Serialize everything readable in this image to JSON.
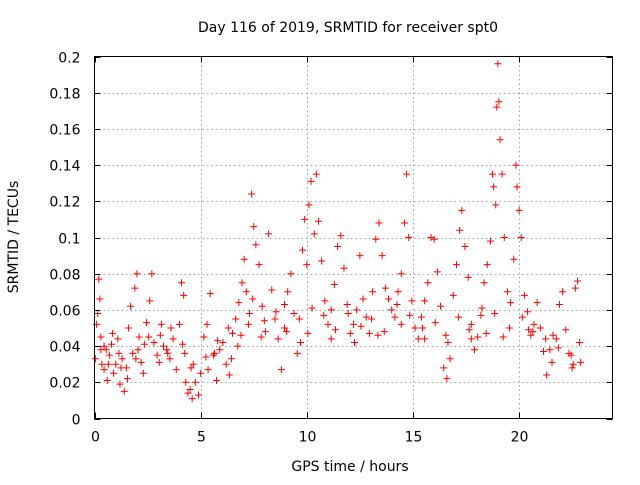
{
  "chart_data": {
    "type": "scatter",
    "title": "Day 116 of 2019, SRMTID for receiver spt0",
    "xlabel": "GPS time / hours",
    "ylabel": "SRMTID / TECUs",
    "xlim": [
      0,
      24.4
    ],
    "ylim": [
      0,
      0.2
    ],
    "x_ticks": [
      "0",
      "5",
      "10",
      "15",
      "20"
    ],
    "x_tick_values": [
      0,
      5,
      10,
      15,
      20
    ],
    "y_ticks": [
      "0",
      "0.02",
      "0.04",
      "0.06",
      "0.08",
      "0.1",
      "0.12",
      "0.14",
      "0.16",
      "0.18",
      "0.2"
    ],
    "y_tick_values": [
      0,
      0.02,
      0.04,
      0.06,
      0.08,
      0.1,
      0.12,
      0.14,
      0.16,
      0.18,
      0.2
    ],
    "grid": true,
    "marker": "+",
    "color": "#ff0000",
    "series": [
      {
        "name": "SRMTID",
        "points": [
          [
            0.05,
            0.033
          ],
          [
            0.1,
            0.052
          ],
          [
            0.15,
            0.058
          ],
          [
            0.2,
            0.077
          ],
          [
            0.25,
            0.066
          ],
          [
            0.3,
            0.045
          ],
          [
            0.35,
            0.03
          ],
          [
            0.45,
            0.027
          ],
          [
            0.55,
            0.038
          ],
          [
            0.6,
            0.021
          ],
          [
            0.7,
            0.035
          ],
          [
            0.8,
            0.041
          ],
          [
            0.9,
            0.025
          ],
          [
            1.0,
            0.03
          ],
          [
            1.1,
            0.044
          ],
          [
            1.2,
            0.019
          ],
          [
            1.3,
            0.033
          ],
          [
            1.4,
            0.015
          ],
          [
            1.5,
            0.028
          ],
          [
            1.6,
            0.05
          ],
          [
            1.7,
            0.062
          ],
          [
            1.8,
            0.036
          ],
          [
            1.9,
            0.072
          ],
          [
            2.0,
            0.08
          ],
          [
            2.1,
            0.045
          ],
          [
            2.2,
            0.031
          ],
          [
            2.3,
            0.025
          ],
          [
            2.45,
            0.053
          ],
          [
            2.6,
            0.065
          ],
          [
            2.7,
            0.08
          ],
          [
            2.8,
            0.042
          ],
          [
            2.95,
            0.035
          ],
          [
            3.1,
            0.046
          ],
          [
            3.25,
            0.04
          ],
          [
            3.4,
            0.038
          ],
          [
            3.55,
            0.033
          ],
          [
            3.7,
            0.044
          ],
          [
            3.85,
            0.027
          ],
          [
            4.0,
            0.052
          ],
          [
            4.1,
            0.075
          ],
          [
            4.2,
            0.068
          ],
          [
            4.3,
            0.02
          ],
          [
            4.4,
            0.014
          ],
          [
            4.5,
            0.016
          ],
          [
            4.6,
            0.011
          ],
          [
            4.75,
            0.02
          ],
          [
            4.9,
            0.013
          ],
          [
            5.0,
            0.025
          ],
          [
            5.15,
            0.045
          ],
          [
            5.3,
            0.052
          ],
          [
            5.45,
            0.069
          ],
          [
            5.6,
            0.035
          ],
          [
            5.75,
            0.021
          ],
          [
            5.9,
            0.038
          ],
          [
            6.05,
            0.042
          ],
          [
            6.2,
            0.03
          ],
          [
            6.35,
            0.024
          ],
          [
            6.5,
            0.047
          ],
          [
            6.65,
            0.055
          ],
          [
            6.8,
            0.064
          ],
          [
            6.95,
            0.075
          ],
          [
            7.05,
            0.088
          ],
          [
            7.15,
            0.07
          ],
          [
            7.3,
            0.058
          ],
          [
            7.4,
            0.124
          ],
          [
            7.5,
            0.106
          ],
          [
            7.6,
            0.096
          ],
          [
            7.75,
            0.085
          ],
          [
            7.9,
            0.062
          ],
          [
            8.05,
            0.048
          ],
          [
            8.2,
            0.102
          ],
          [
            8.35,
            0.071
          ],
          [
            8.5,
            0.055
          ],
          [
            8.65,
            0.044
          ],
          [
            8.8,
            0.027
          ],
          [
            8.95,
            0.063
          ],
          [
            9.1,
            0.07
          ],
          [
            9.25,
            0.08
          ],
          [
            9.4,
            0.058
          ],
          [
            9.55,
            0.036
          ],
          [
            9.7,
            0.042
          ],
          [
            9.8,
            0.093
          ],
          [
            9.9,
            0.11
          ],
          [
            10.0,
            0.085
          ],
          [
            10.1,
            0.118
          ],
          [
            10.2,
            0.131
          ],
          [
            10.35,
            0.102
          ],
          [
            10.45,
            0.135
          ],
          [
            10.55,
            0.109
          ],
          [
            10.7,
            0.087
          ],
          [
            10.85,
            0.065
          ],
          [
            11.0,
            0.052
          ],
          [
            11.15,
            0.06
          ],
          [
            11.3,
            0.074
          ],
          [
            11.45,
            0.095
          ],
          [
            11.6,
            0.101
          ],
          [
            11.75,
            0.083
          ],
          [
            11.9,
            0.063
          ],
          [
            12.05,
            0.047
          ],
          [
            12.2,
            0.052
          ],
          [
            12.35,
            0.06
          ],
          [
            12.5,
            0.09
          ],
          [
            12.65,
            0.066
          ],
          [
            12.8,
            0.056
          ],
          [
            12.95,
            0.047
          ],
          [
            13.1,
            0.07
          ],
          [
            13.25,
            0.099
          ],
          [
            13.4,
            0.108
          ],
          [
            13.55,
            0.09
          ],
          [
            13.7,
            0.072
          ],
          [
            13.85,
            0.066
          ],
          [
            14.0,
            0.06
          ],
          [
            14.15,
            0.056
          ],
          [
            14.3,
            0.07
          ],
          [
            14.45,
            0.08
          ],
          [
            14.6,
            0.108
          ],
          [
            14.7,
            0.135
          ],
          [
            14.8,
            0.1
          ],
          [
            14.95,
            0.065
          ],
          [
            15.1,
            0.05
          ],
          [
            15.25,
            0.044
          ],
          [
            15.4,
            0.056
          ],
          [
            15.55,
            0.065
          ],
          [
            15.7,
            0.075
          ],
          [
            15.85,
            0.1
          ],
          [
            16.0,
            0.099
          ],
          [
            16.15,
            0.081
          ],
          [
            16.3,
            0.062
          ],
          [
            16.45,
            0.028
          ],
          [
            16.6,
            0.022
          ],
          [
            16.75,
            0.033
          ],
          [
            16.9,
            0.068
          ],
          [
            17.05,
            0.085
          ],
          [
            17.2,
            0.104
          ],
          [
            17.3,
            0.115
          ],
          [
            17.45,
            0.095
          ],
          [
            17.6,
            0.078
          ],
          [
            17.75,
            0.052
          ],
          [
            17.9,
            0.038
          ],
          [
            18.05,
            0.045
          ],
          [
            18.2,
            0.057
          ],
          [
            18.35,
            0.075
          ],
          [
            18.5,
            0.085
          ],
          [
            18.65,
            0.098
          ],
          [
            18.75,
            0.135
          ],
          [
            18.8,
            0.128
          ],
          [
            18.9,
            0.118
          ],
          [
            18.95,
            0.172
          ],
          [
            19.0,
            0.196
          ],
          [
            19.05,
            0.175
          ],
          [
            19.1,
            0.154
          ],
          [
            19.2,
            0.135
          ],
          [
            19.3,
            0.1
          ],
          [
            19.45,
            0.07
          ],
          [
            19.6,
            0.064
          ],
          [
            19.75,
            0.088
          ],
          [
            19.85,
            0.14
          ],
          [
            19.9,
            0.128
          ],
          [
            20.0,
            0.115
          ],
          [
            20.1,
            0.1
          ],
          [
            20.25,
            0.068
          ],
          [
            20.4,
            0.059
          ],
          [
            20.55,
            0.046
          ],
          [
            20.7,
            0.052
          ],
          [
            20.85,
            0.064
          ],
          [
            21.0,
            0.05
          ],
          [
            21.15,
            0.037
          ],
          [
            21.3,
            0.024
          ],
          [
            21.45,
            0.038
          ],
          [
            21.6,
            0.046
          ],
          [
            21.75,
            0.044
          ],
          [
            21.9,
            0.063
          ],
          [
            22.05,
            0.07
          ],
          [
            22.2,
            0.049
          ],
          [
            22.35,
            0.036
          ],
          [
            22.5,
            0.028
          ],
          [
            22.65,
            0.072
          ],
          [
            22.75,
            0.076
          ],
          [
            22.85,
            0.042
          ],
          [
            22.9,
            0.031
          ],
          [
            0.3,
            0.038
          ],
          [
            0.65,
            0.03
          ],
          [
            1.15,
            0.036
          ],
          [
            1.55,
            0.022
          ],
          [
            2.05,
            0.038
          ],
          [
            2.55,
            0.045
          ],
          [
            3.05,
            0.031
          ],
          [
            3.6,
            0.05
          ],
          [
            4.15,
            0.041
          ],
          [
            4.65,
            0.03
          ],
          [
            5.25,
            0.034
          ],
          [
            5.8,
            0.043
          ],
          [
            6.3,
            0.05
          ],
          [
            6.9,
            0.046
          ],
          [
            7.45,
            0.066
          ],
          [
            8.0,
            0.054
          ],
          [
            8.55,
            0.059
          ],
          [
            9.05,
            0.048
          ],
          [
            9.65,
            0.055
          ],
          [
            10.25,
            0.061
          ],
          [
            10.8,
            0.057
          ],
          [
            11.35,
            0.049
          ],
          [
            11.95,
            0.058
          ],
          [
            12.55,
            0.051
          ],
          [
            13.05,
            0.055
          ],
          [
            13.65,
            0.048
          ],
          [
            14.25,
            0.063
          ],
          [
            14.85,
            0.057
          ],
          [
            15.45,
            0.05
          ],
          [
            16.05,
            0.053
          ],
          [
            16.55,
            0.046
          ],
          [
            17.15,
            0.056
          ],
          [
            17.65,
            0.049
          ],
          [
            18.25,
            0.061
          ],
          [
            18.85,
            0.058
          ],
          [
            19.55,
            0.05
          ],
          [
            20.15,
            0.056
          ],
          [
            20.65,
            0.048
          ],
          [
            21.25,
            0.044
          ],
          [
            21.85,
            0.039
          ],
          [
            22.45,
            0.035
          ],
          [
            0.45,
            0.04
          ],
          [
            1.25,
            0.028
          ],
          [
            2.35,
            0.041
          ],
          [
            3.45,
            0.036
          ],
          [
            4.55,
            0.028
          ],
          [
            5.65,
            0.036
          ],
          [
            6.75,
            0.04
          ],
          [
            7.85,
            0.045
          ],
          [
            8.95,
            0.05
          ],
          [
            10.05,
            0.047
          ],
          [
            11.15,
            0.044
          ],
          [
            12.25,
            0.042
          ],
          [
            13.35,
            0.046
          ],
          [
            14.45,
            0.052
          ],
          [
            15.55,
            0.044
          ],
          [
            16.65,
            0.042
          ],
          [
            17.75,
            0.044
          ],
          [
            18.45,
            0.047
          ],
          [
            19.25,
            0.045
          ],
          [
            20.45,
            0.049
          ],
          [
            21.55,
            0.031
          ],
          [
            22.55,
            0.03
          ],
          [
            0.85,
            0.047
          ],
          [
            1.95,
            0.033
          ],
          [
            3.15,
            0.052
          ],
          [
            4.25,
            0.036
          ],
          [
            5.35,
            0.027
          ],
          [
            6.45,
            0.033
          ],
          [
            7.25,
            0.052
          ]
        ]
      }
    ]
  }
}
